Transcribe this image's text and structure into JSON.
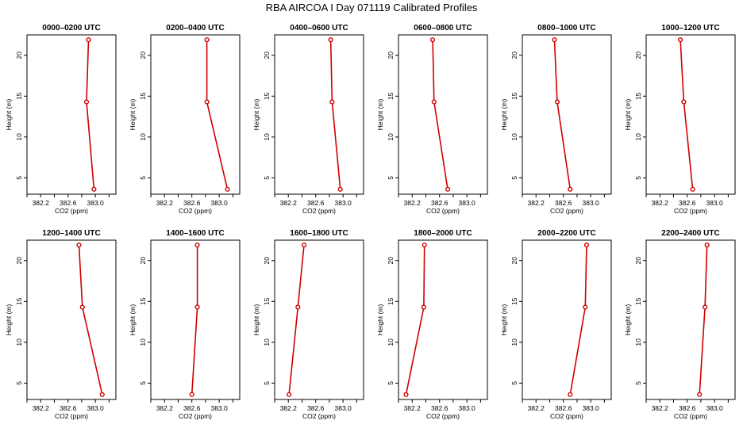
{
  "figure_title": "RBA AIRCOA I  Day 071119  Calibrated Profiles",
  "chart_data": [
    {
      "type": "line",
      "title": "0000–0200 UTC",
      "xlabel": "CO2 (ppm)",
      "ylabel": "Height (m)",
      "xlim": [
        382.0,
        383.3
      ],
      "ylim": [
        3,
        22.5
      ],
      "x_ticks": [
        "382.2",
        "382.6",
        "383.0"
      ],
      "y_ticks": [
        "5",
        "10",
        "15",
        "20"
      ],
      "grid": false,
      "x": [
        382.98,
        382.87,
        382.9
      ],
      "y": [
        3.6,
        14.3,
        21.9
      ]
    },
    {
      "type": "line",
      "title": "0200–0400 UTC",
      "xlabel": "CO2 (ppm)",
      "ylabel": "Height (m)",
      "xlim": [
        382.0,
        383.3
      ],
      "ylim": [
        3,
        22.5
      ],
      "x_ticks": [
        "382.2",
        "382.6",
        "383.0"
      ],
      "y_ticks": [
        "5",
        "10",
        "15",
        "20"
      ],
      "grid": false,
      "x": [
        383.12,
        382.82,
        382.82
      ],
      "y": [
        3.6,
        14.3,
        21.9
      ]
    },
    {
      "type": "line",
      "title": "0400–0600 UTC",
      "xlabel": "CO2 (ppm)",
      "ylabel": "Height (m)",
      "xlim": [
        382.0,
        383.3
      ],
      "ylim": [
        3,
        22.5
      ],
      "x_ticks": [
        "382.2",
        "382.6",
        "383.0"
      ],
      "y_ticks": [
        "5",
        "10",
        "15",
        "20"
      ],
      "grid": false,
      "x": [
        382.96,
        382.84,
        382.82
      ],
      "y": [
        3.6,
        14.3,
        21.9
      ]
    },
    {
      "type": "line",
      "title": "0600–0800 UTC",
      "xlabel": "CO2 (ppm)",
      "ylabel": "Height (m)",
      "xlim": [
        382.0,
        383.3
      ],
      "ylim": [
        3,
        22.5
      ],
      "x_ticks": [
        "382.2",
        "382.6",
        "383.0"
      ],
      "y_ticks": [
        "5",
        "10",
        "15",
        "20"
      ],
      "grid": false,
      "x": [
        382.72,
        382.52,
        382.5
      ],
      "y": [
        3.6,
        14.3,
        21.9
      ]
    },
    {
      "type": "line",
      "title": "0800–1000 UTC",
      "xlabel": "CO2 (ppm)",
      "ylabel": "Height (m)",
      "xlim": [
        382.0,
        383.3
      ],
      "ylim": [
        3,
        22.5
      ],
      "x_ticks": [
        "382.2",
        "382.6",
        "383.0"
      ],
      "y_ticks": [
        "5",
        "10",
        "15",
        "20"
      ],
      "grid": false,
      "x": [
        382.7,
        382.51,
        382.47
      ],
      "y": [
        3.6,
        14.3,
        21.9
      ]
    },
    {
      "type": "line",
      "title": "1000–1200 UTC",
      "xlabel": "CO2 (ppm)",
      "ylabel": "Height (m)",
      "xlim": [
        382.0,
        383.3
      ],
      "ylim": [
        3,
        22.5
      ],
      "x_ticks": [
        "382.2",
        "382.6",
        "383.0"
      ],
      "y_ticks": [
        "5",
        "10",
        "15",
        "20"
      ],
      "grid": false,
      "x": [
        382.68,
        382.55,
        382.5
      ],
      "y": [
        3.6,
        14.3,
        21.9
      ]
    },
    {
      "type": "line",
      "title": "1200–1400 UTC",
      "xlabel": "CO2 (ppm)",
      "ylabel": "Height (m)",
      "xlim": [
        382.0,
        383.3
      ],
      "ylim": [
        3,
        22.5
      ],
      "x_ticks": [
        "382.2",
        "382.6",
        "383.0"
      ],
      "y_ticks": [
        "5",
        "10",
        "15",
        "20"
      ],
      "grid": false,
      "x": [
        383.1,
        382.81,
        382.76
      ],
      "y": [
        3.6,
        14.3,
        21.9
      ]
    },
    {
      "type": "line",
      "title": "1400–1600 UTC",
      "xlabel": "CO2 (ppm)",
      "ylabel": "Height (m)",
      "xlim": [
        382.0,
        383.3
      ],
      "ylim": [
        3,
        22.5
      ],
      "x_ticks": [
        "382.2",
        "382.6",
        "383.0"
      ],
      "y_ticks": [
        "5",
        "10",
        "15",
        "20"
      ],
      "grid": false,
      "x": [
        382.6,
        382.68,
        382.68
      ],
      "y": [
        3.6,
        14.3,
        21.9
      ]
    },
    {
      "type": "line",
      "title": "1600–1800 UTC",
      "xlabel": "CO2 (ppm)",
      "ylabel": "Height (m)",
      "xlim": [
        382.0,
        383.3
      ],
      "ylim": [
        3,
        22.5
      ],
      "x_ticks": [
        "382.2",
        "382.6",
        "383.0"
      ],
      "y_ticks": [
        "5",
        "10",
        "15",
        "20"
      ],
      "grid": false,
      "x": [
        382.21,
        382.34,
        382.43
      ],
      "y": [
        3.6,
        14.3,
        21.9
      ]
    },
    {
      "type": "line",
      "title": "1800–2000 UTC",
      "xlabel": "CO2 (ppm)",
      "ylabel": "Height (m)",
      "xlim": [
        382.0,
        383.3
      ],
      "ylim": [
        3,
        22.5
      ],
      "x_ticks": [
        "382.2",
        "382.6",
        "383.0"
      ],
      "y_ticks": [
        "5",
        "10",
        "15",
        "20"
      ],
      "grid": false,
      "x": [
        382.11,
        382.37,
        382.38
      ],
      "y": [
        3.6,
        14.3,
        21.9
      ]
    },
    {
      "type": "line",
      "title": "2000–2200 UTC",
      "xlabel": "CO2 (ppm)",
      "ylabel": "Height (m)",
      "xlim": [
        382.0,
        383.3
      ],
      "ylim": [
        3,
        22.5
      ],
      "x_ticks": [
        "382.2",
        "382.6",
        "383.0"
      ],
      "y_ticks": [
        "5",
        "10",
        "15",
        "20"
      ],
      "grid": false,
      "x": [
        382.7,
        382.92,
        382.94
      ],
      "y": [
        3.6,
        14.3,
        21.9
      ]
    },
    {
      "type": "line",
      "title": "2200–2400 UTC",
      "xlabel": "CO2 (ppm)",
      "ylabel": "Height (m)",
      "xlim": [
        382.0,
        383.3
      ],
      "ylim": [
        3,
        22.5
      ],
      "x_ticks": [
        "382.2",
        "382.6",
        "383.0"
      ],
      "y_ticks": [
        "5",
        "10",
        "15",
        "20"
      ],
      "grid": false,
      "x": [
        382.78,
        382.86,
        382.89
      ],
      "y": [
        3.6,
        14.3,
        21.9
      ]
    }
  ]
}
